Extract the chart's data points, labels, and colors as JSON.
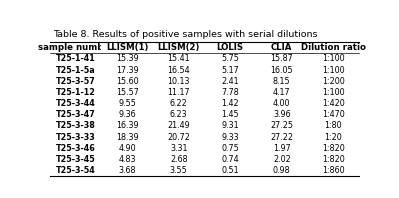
{
  "title": "Table 8. Results of positive samples with serial dilutions",
  "columns": [
    "sample number",
    "LLISM(1)",
    "LLISM(2)",
    "LOLIS",
    "CLIA",
    "Dilution ratio"
  ],
  "rows": [
    [
      "T25-1-41",
      "15.39",
      "15.41",
      "5.75",
      "15.87",
      "1:100"
    ],
    [
      "T25-1-5a",
      "17.39",
      "16.54",
      "5.17",
      "16.05",
      "1:100"
    ],
    [
      "T25-3-57",
      "15.60",
      "10.13",
      "2.41",
      "8.15",
      "1:200"
    ],
    [
      "T25-1-12",
      "15.57",
      "11.17",
      "7.78",
      "4.17",
      "1:100"
    ],
    [
      "T25-3-44",
      "9.55",
      "6.22",
      "1.42",
      "4.00",
      "1:420"
    ],
    [
      "T25-3-47",
      "9.36",
      "6.23",
      "1.45",
      "3.96",
      "1:470"
    ],
    [
      "T25-3-38",
      "16.39",
      "21.49",
      "9.31",
      "27.25",
      "1:80"
    ],
    [
      "T25-3-33",
      "18.39",
      "20.72",
      "9.33",
      "27.22",
      "1:20"
    ],
    [
      "T25-3-46",
      "4.90",
      "3.31",
      "0.75",
      "1.97",
      "1:820"
    ],
    [
      "T25-3-45",
      "4.83",
      "2.68",
      "0.74",
      "2.02",
      "1:820"
    ],
    [
      "T25-3-54",
      "3.68",
      "3.55",
      "0.51",
      "0.98",
      "1:860"
    ]
  ],
  "header_fontsize": 6.2,
  "row_fontsize": 5.8,
  "title_fontsize": 6.8
}
